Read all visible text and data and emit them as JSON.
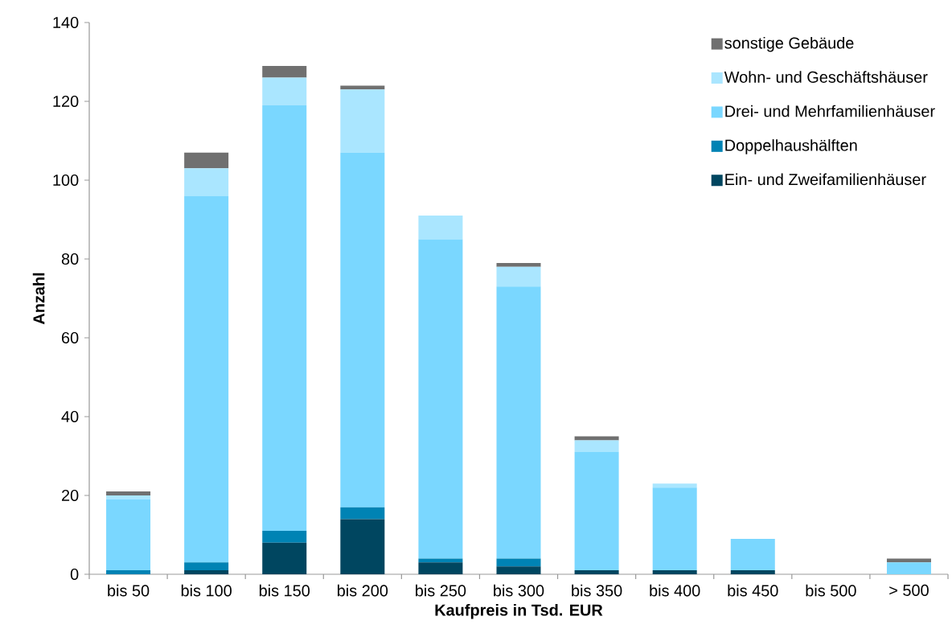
{
  "chart_data": {
    "type": "bar",
    "stacked": true,
    "xlabel": "Kaufpreis in Tsd. EUR",
    "ylabel": "Anzahl",
    "categories": [
      "bis 50",
      "bis 100",
      "bis 150",
      "bis 200",
      "bis 250",
      "bis 300",
      "bis 350",
      "bis 400",
      "bis 450",
      "bis 500",
      "> 500"
    ],
    "series": [
      {
        "name": "Ein- und Zweifamilienhäuser",
        "color": "#004660",
        "values": [
          0,
          1,
          8,
          14,
          3,
          2,
          1,
          1,
          1,
          0,
          0
        ]
      },
      {
        "name": "Doppelhaushälften",
        "color": "#0083b4",
        "values": [
          1,
          2,
          3,
          3,
          1,
          2,
          0,
          0,
          0,
          0,
          0
        ]
      },
      {
        "name": "Drei- und Mehrfamilienhäuser",
        "color": "#7ad7ff",
        "values": [
          18,
          93,
          108,
          90,
          81,
          69,
          30,
          21,
          8,
          0,
          3
        ]
      },
      {
        "name": "Wohn- und Geschäftshäuser",
        "color": "#aae6ff",
        "values": [
          1,
          7,
          7,
          16,
          6,
          5,
          3,
          1,
          0,
          0,
          0
        ]
      },
      {
        "name": "sonstige Gebäude",
        "color": "#707070",
        "values": [
          1,
          4,
          3,
          1,
          0,
          1,
          1,
          0,
          0,
          0,
          1
        ]
      }
    ],
    "ylim": [
      0,
      140
    ],
    "yticks": [
      0,
      20,
      40,
      60,
      80,
      100,
      120,
      140
    ],
    "legend": "top right"
  }
}
